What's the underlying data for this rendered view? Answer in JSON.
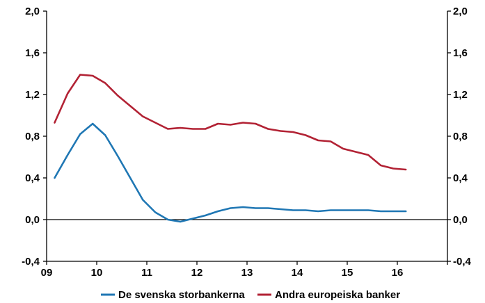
{
  "chart_data": {
    "type": "line",
    "title": "",
    "xlabel": "",
    "ylabel": "",
    "xlim": [
      2009.0,
      2017.0
    ],
    "ylim": [
      -0.4,
      2.0
    ],
    "x_ticks": [
      {
        "value": 2009,
        "label": "09"
      },
      {
        "value": 2010,
        "label": "10"
      },
      {
        "value": 2011,
        "label": "11"
      },
      {
        "value": 2012,
        "label": "12"
      },
      {
        "value": 2013,
        "label": "13"
      },
      {
        "value": 2014,
        "label": "14"
      },
      {
        "value": 2015,
        "label": "15"
      },
      {
        "value": 2016,
        "label": "16"
      }
    ],
    "y_ticks": [
      {
        "value": -0.4,
        "label": "-0,4"
      },
      {
        "value": 0.0,
        "label": "0,0"
      },
      {
        "value": 0.4,
        "label": "0,4"
      },
      {
        "value": 0.8,
        "label": "0,8"
      },
      {
        "value": 1.2,
        "label": "1,2"
      },
      {
        "value": 1.6,
        "label": "1,6"
      },
      {
        "value": 2.0,
        "label": "2,0"
      }
    ],
    "secondary_y_axis": true,
    "grid": false,
    "legend_position": "bottom",
    "series": [
      {
        "name": "De svenska storbankerna",
        "color": "#1f77b4",
        "x": [
          2009.16,
          2009.42,
          2009.67,
          2009.92,
          2010.17,
          2010.42,
          2010.67,
          2010.92,
          2011.17,
          2011.42,
          2011.67,
          2011.92,
          2012.17,
          2012.42,
          2012.67,
          2012.92,
          2013.17,
          2013.42,
          2013.67,
          2013.92,
          2014.17,
          2014.42,
          2014.67,
          2014.92,
          2015.17,
          2015.42,
          2015.67,
          2015.92,
          2016.17
        ],
        "y": [
          0.4,
          0.62,
          0.82,
          0.92,
          0.81,
          0.61,
          0.4,
          0.19,
          0.07,
          0.0,
          -0.02,
          0.01,
          0.04,
          0.08,
          0.11,
          0.12,
          0.11,
          0.11,
          0.1,
          0.09,
          0.09,
          0.08,
          0.09,
          0.09,
          0.09,
          0.09,
          0.08,
          0.08,
          0.08
        ]
      },
      {
        "name": "Andra europeiska banker",
        "color": "#b22234",
        "x": [
          2009.16,
          2009.42,
          2009.67,
          2009.92,
          2010.17,
          2010.42,
          2010.67,
          2010.92,
          2011.17,
          2011.42,
          2011.67,
          2011.92,
          2012.17,
          2012.42,
          2012.67,
          2012.92,
          2013.17,
          2013.42,
          2013.67,
          2013.92,
          2014.17,
          2014.42,
          2014.67,
          2014.92,
          2015.17,
          2015.42,
          2015.67,
          2015.92,
          2016.17
        ],
        "y": [
          0.93,
          1.21,
          1.39,
          1.38,
          1.31,
          1.19,
          1.09,
          0.99,
          0.93,
          0.87,
          0.88,
          0.87,
          0.87,
          0.92,
          0.91,
          0.93,
          0.92,
          0.87,
          0.85,
          0.84,
          0.81,
          0.76,
          0.75,
          0.68,
          0.65,
          0.62,
          0.52,
          0.49,
          0.48
        ]
      }
    ]
  }
}
